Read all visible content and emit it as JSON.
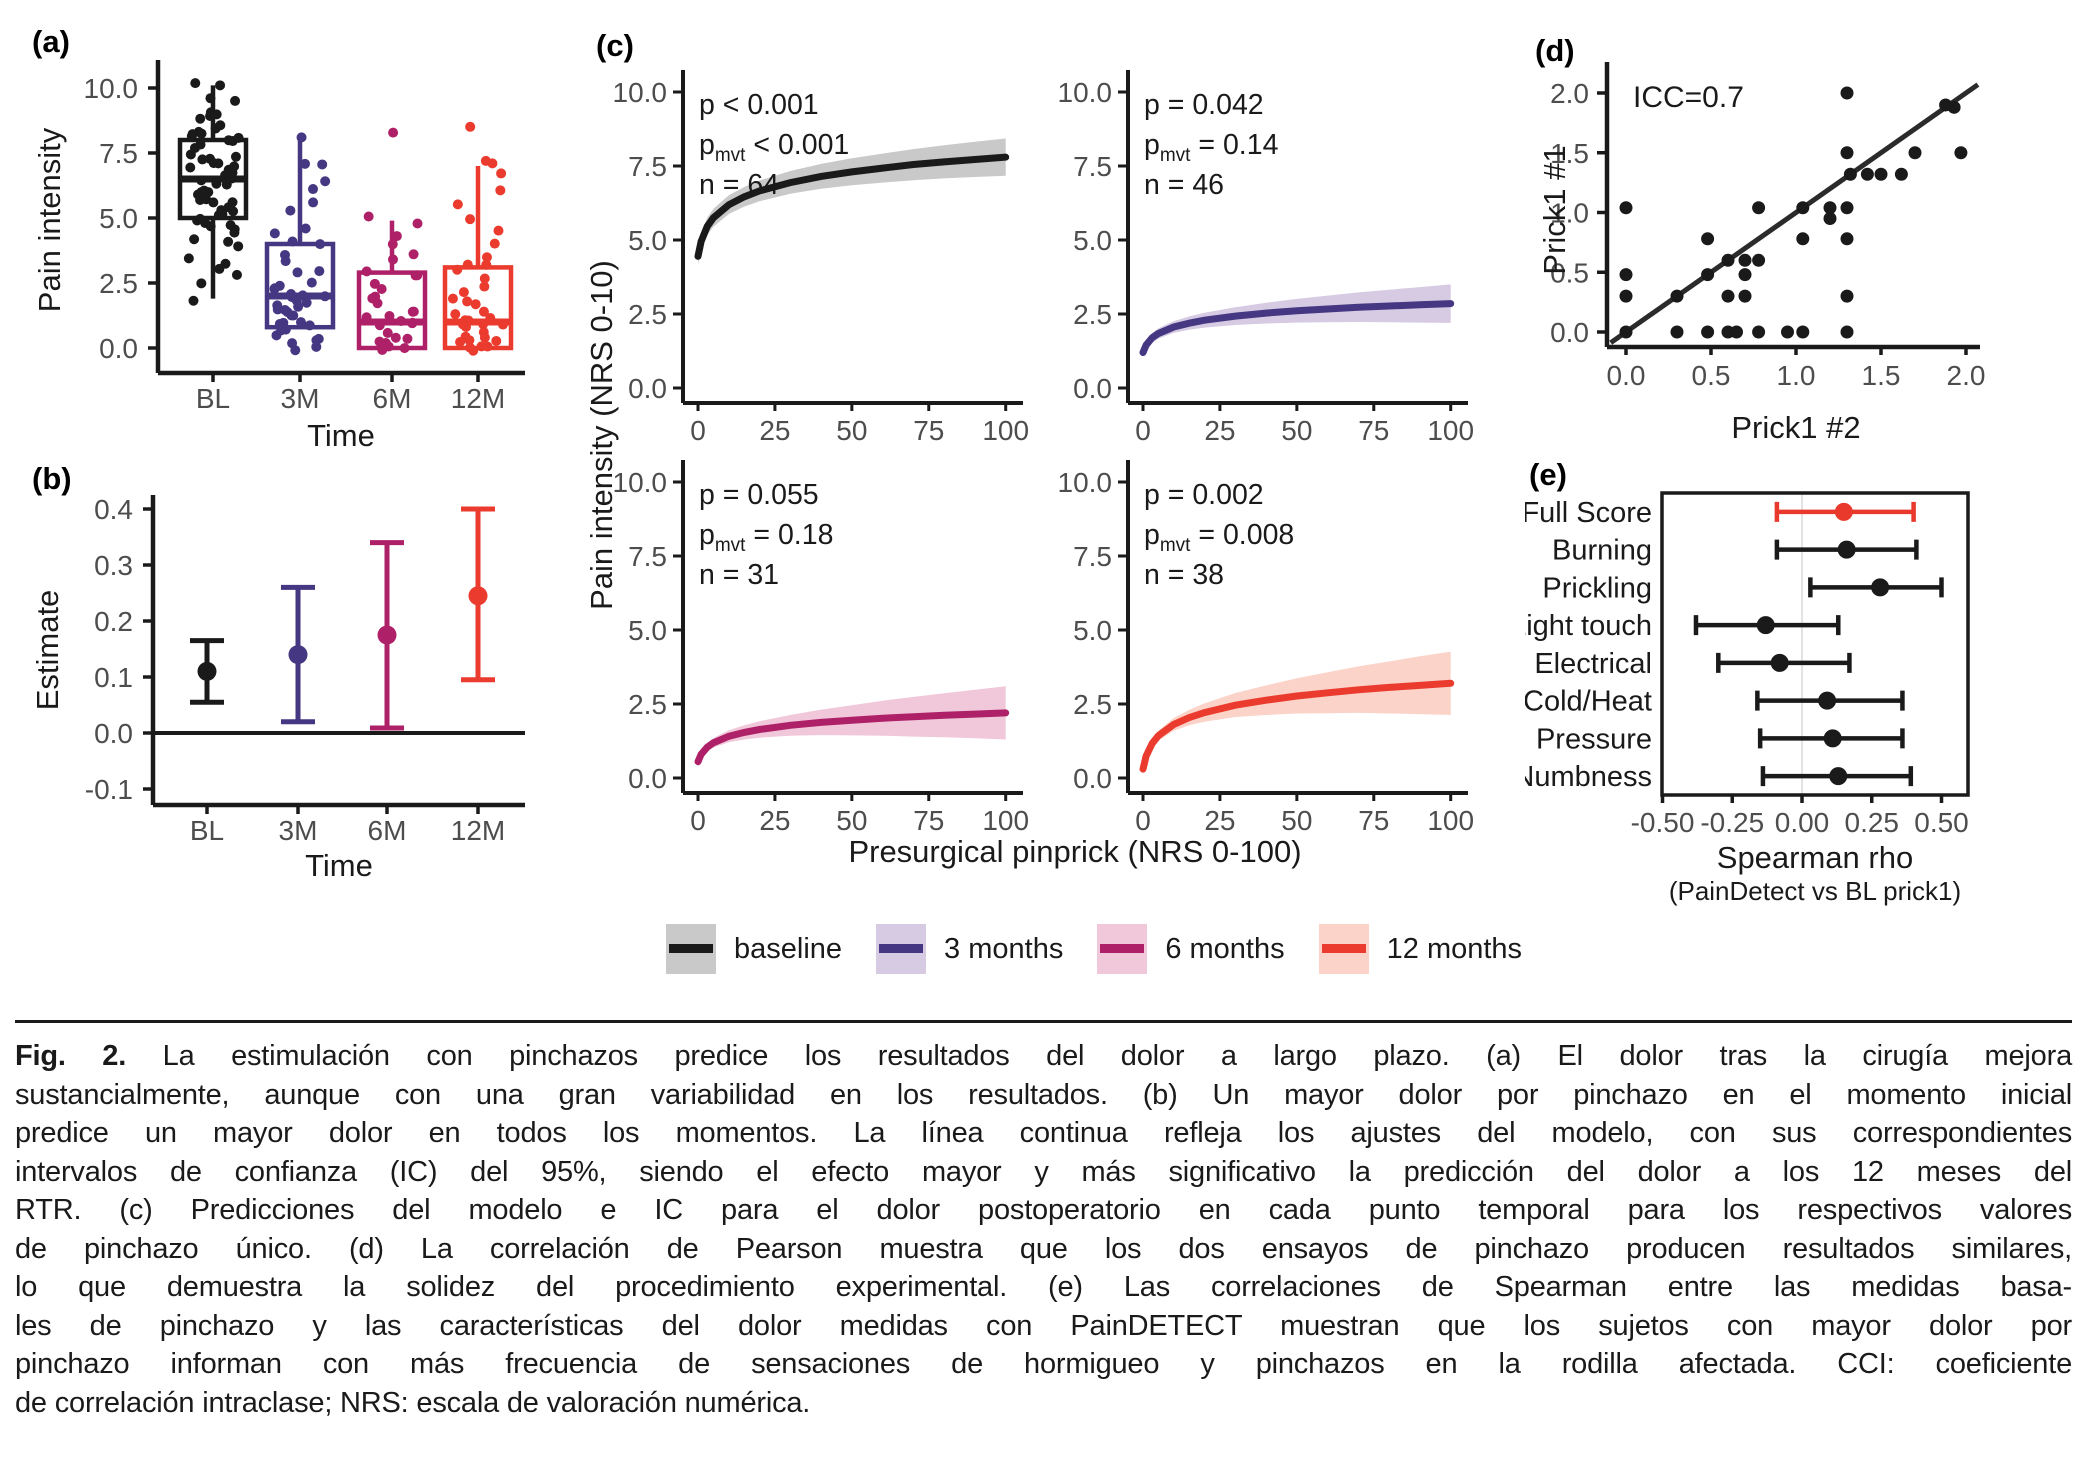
{
  "page": {
    "background": "#ffffff"
  },
  "panel_labels": {
    "a": "(a)",
    "b": "(b)",
    "c": "(c)",
    "d": "(d)",
    "e": "(e)"
  },
  "legend": {
    "items": [
      {
        "label": "baseline",
        "color": "#1a1a1a",
        "band": "#c9c9c9"
      },
      {
        "label": "3 months",
        "color": "#453781",
        "band": "#d6cbe3"
      },
      {
        "label": "6 months",
        "color": "#ae2168",
        "band": "#f1c7da"
      },
      {
        "label": "12 months",
        "color": "#ea3b2e",
        "band": "#fbd3c8"
      }
    ]
  },
  "caption": {
    "fig_label": "Fig. 2.",
    "lines": [
      "La estimulación con pinchazos predice los resultados del dolor a largo plazo. (a) El dolor tras la cirugía mejora",
      "sustancialmente, aunque con una gran variabilidad en los resultados. (b) Un mayor dolor por pinchazo en el momento inicial",
      "predice un mayor dolor en todos los momentos. La línea continua refleja los ajustes del modelo, con sus correspondientes",
      "intervalos de confianza (IC) del 95%, siendo el efecto mayor y más significativo la predicción del dolor a los 12 meses del",
      "RTR. (c) Predicciones del modelo e IC para el dolor postoperatorio en cada punto temporal para los respectivos valores",
      "de pinchazo único. (d) La correlación de Pearson muestra que los dos ensayos de pinchazo producen resultados similares,",
      "lo que demuestra la solidez del procedimiento experimental. (e) Las correlaciones de Spearman entre las medidas basa-",
      "les de pinchazo y las características del dolor medidas con PainDETECT muestran que los sujetos con mayor dolor por",
      "pinchazo informan con más frecuencia de sensaciones de hormigueo y pinchazos en la rodilla afectada. CCI: coeficiente",
      "de correlación intraclase; NRS: escala de valoración numérica."
    ]
  },
  "chart_data": [
    {
      "panel": "a",
      "type": "box",
      "xlabel": "Time",
      "ylabel": "Pain intensity",
      "ylim": [
        -0.6,
        10.6
      ],
      "yticks": [
        0,
        2.5,
        5,
        7.5,
        10
      ],
      "ytick_labels": [
        "0.0",
        "2.5",
        "5.0",
        "7.5",
        "10.0"
      ],
      "categories": [
        "BL",
        "3M",
        "6M",
        "12M"
      ],
      "colors": [
        "#1a1a1a",
        "#453781",
        "#ae2168",
        "#ea3b2e"
      ],
      "boxes": [
        {
          "whislo": 1.9,
          "q1": 5.0,
          "med": 6.5,
          "q3": 8.0,
          "whishi": 10.1
        },
        {
          "whislo": 0.8,
          "q1": 0.8,
          "med": 2.0,
          "q3": 4.0,
          "whishi": 8.0
        },
        {
          "whislo": 0.0,
          "q1": 0.0,
          "med": 1.0,
          "q3": 2.9,
          "whishi": 4.9
        },
        {
          "whislo": 0.0,
          "q1": 0.0,
          "med": 1.0,
          "q3": 3.1,
          "whishi": 7.0
        }
      ],
      "points": [
        [
          10.1,
          10.0,
          9.6,
          9.4,
          9.1,
          9.0,
          8.9,
          8.8,
          8.6,
          8.5,
          8.4,
          8.3,
          8.2,
          8.1,
          8.0,
          8.0,
          7.9,
          7.8,
          7.6,
          7.5,
          7.4,
          7.3,
          7.2,
          7.1,
          7.0,
          7.0,
          6.9,
          6.8,
          6.7,
          6.6,
          6.5,
          6.5,
          6.4,
          6.3,
          6.2,
          6.1,
          6.0,
          6.0,
          5.9,
          5.8,
          5.7,
          5.6,
          5.5,
          5.4,
          5.3,
          5.2,
          5.1,
          5.0,
          5.0,
          4.9,
          4.8,
          4.7,
          4.6,
          4.5,
          4.4,
          4.2,
          4.0,
          3.8,
          3.5,
          3.2,
          3.0,
          2.9,
          2.5,
          1.9
        ],
        [
          8.0,
          7.0,
          7.0,
          6.5,
          6.0,
          5.5,
          5.2,
          4.7,
          4.3,
          4.0,
          3.9,
          3.6,
          3.3,
          3.0,
          2.8,
          2.6,
          2.4,
          2.3,
          2.2,
          2.1,
          2.1,
          2.0,
          2.0,
          2.0,
          1.9,
          1.9,
          1.8,
          1.7,
          1.6,
          1.5,
          1.4,
          1.3,
          1.2,
          1.2,
          1.1,
          1.0,
          0.9,
          0.8,
          0.7,
          0.6,
          0.5,
          0.4,
          0.3,
          0.2,
          0.1,
          0.0
        ],
        [
          8.2,
          5.0,
          4.9,
          4.4,
          4.0,
          3.5,
          3.3,
          3.0,
          2.9,
          2.7,
          2.4,
          2.2,
          2.0,
          1.9,
          1.7,
          1.5,
          1.4,
          1.2,
          1.1,
          1.0,
          1.0,
          0.9,
          0.8,
          0.6,
          0.5,
          0.4,
          0.3,
          0.2,
          0.1,
          0.0,
          0.0
        ],
        [
          8.6,
          7.3,
          7.0,
          6.6,
          6.0,
          5.6,
          5.0,
          4.6,
          4.1,
          3.6,
          3.3,
          3.1,
          2.9,
          2.6,
          2.3,
          2.1,
          2.0,
          1.8,
          1.6,
          1.4,
          1.3,
          1.2,
          1.1,
          1.0,
          1.0,
          0.9,
          0.8,
          0.7,
          0.6,
          0.5,
          0.4,
          0.3,
          0.2,
          0.2,
          0.1,
          0.1,
          0.0,
          0.0
        ]
      ]
    },
    {
      "panel": "b",
      "type": "pointrange",
      "xlabel": "Time",
      "ylabel": "Estimate",
      "ylim": [
        -0.13,
        0.42
      ],
      "yticks": [
        -0.1,
        0,
        0.1,
        0.2,
        0.3,
        0.4
      ],
      "ytick_labels": [
        "-0.1",
        "0.0",
        "0.1",
        "0.2",
        "0.3",
        "0.4"
      ],
      "hline": 0,
      "categories": [
        "BL",
        "3M",
        "6M",
        "12M"
      ],
      "colors": [
        "#1a1a1a",
        "#453781",
        "#ae2168",
        "#ea3b2e"
      ],
      "series": [
        {
          "est": 0.11,
          "lo": 0.055,
          "hi": 0.165
        },
        {
          "est": 0.14,
          "lo": 0.02,
          "hi": 0.26
        },
        {
          "est": 0.175,
          "lo": 0.009,
          "hi": 0.34
        },
        {
          "est": 0.245,
          "lo": 0.095,
          "hi": 0.4
        }
      ]
    },
    {
      "panel": "c",
      "type": "line",
      "xlabel": "Presurgical pinprick (NRS 0-100)",
      "ylabel": "Pain intensity (NRS 0-10)",
      "xticks": [
        0,
        25,
        50,
        75,
        100
      ],
      "xtick_labels": [
        "0",
        "25",
        "50",
        "75",
        "100"
      ],
      "yticks": [
        0,
        2.5,
        5,
        7.5,
        10
      ],
      "ytick_labels": [
        "0.0",
        "2.5",
        "5.0",
        "7.5",
        "10.0"
      ],
      "xlim": [
        0,
        100
      ],
      "ylim": [
        0,
        10
      ],
      "pmvt_base": "p",
      "pmvt_sub": "mvt",
      "subplots": [
        {
          "name": "baseline",
          "color": "#1a1a1a",
          "band": "#c9c9c9",
          "stats": {
            "p": "p < 0.001",
            "pmvt": "< 0.001",
            "n": "n = 64"
          },
          "points": [
            [
              0,
              4.45,
              4.17,
              4.73
            ],
            [
              1,
              4.95,
              4.67,
              5.23
            ],
            [
              3,
              5.46,
              5.17,
              5.75
            ],
            [
              5,
              5.75,
              5.45,
              6.05
            ],
            [
              10,
              6.19,
              5.88,
              6.51
            ],
            [
              15,
              6.46,
              6.13,
              6.79
            ],
            [
              20,
              6.66,
              6.31,
              7.01
            ],
            [
              30,
              6.94,
              6.56,
              7.33
            ],
            [
              40,
              7.15,
              6.73,
              7.57
            ],
            [
              50,
              7.3,
              6.85,
              7.76
            ],
            [
              60,
              7.43,
              6.94,
              7.92
            ],
            [
              70,
              7.55,
              7.02,
              8.07
            ],
            [
              80,
              7.64,
              7.08,
              8.2
            ],
            [
              90,
              7.72,
              7.13,
              8.32
            ],
            [
              100,
              7.8,
              7.17,
              8.43
            ]
          ]
        },
        {
          "name": "3 months",
          "color": "#453781",
          "band": "#d6cbe3",
          "stats": {
            "p": "p = 0.042",
            "pmvt": "= 0.14",
            "n": "n = 46"
          },
          "points": [
            [
              0,
              1.2,
              1.05,
              1.35
            ],
            [
              1,
              1.45,
              1.29,
              1.6
            ],
            [
              3,
              1.7,
              1.53,
              1.86
            ],
            [
              5,
              1.84,
              1.67,
              2.02
            ],
            [
              10,
              2.06,
              1.86,
              2.26
            ],
            [
              15,
              2.19,
              1.97,
              2.42
            ],
            [
              20,
              2.29,
              2.04,
              2.54
            ],
            [
              30,
              2.43,
              2.13,
              2.73
            ],
            [
              40,
              2.53,
              2.18,
              2.88
            ],
            [
              50,
              2.61,
              2.21,
              3.01
            ],
            [
              60,
              2.67,
              2.22,
              3.12
            ],
            [
              70,
              2.73,
              2.23,
              3.23
            ],
            [
              80,
              2.77,
              2.22,
              3.32
            ],
            [
              90,
              2.81,
              2.21,
              3.41
            ],
            [
              100,
              2.85,
              2.2,
              3.5
            ]
          ]
        },
        {
          "name": "6 months",
          "color": "#ae2168",
          "band": "#f1c7da",
          "stats": {
            "p": "p = 0.055",
            "pmvt": "= 0.18",
            "n": "n = 31"
          },
          "points": [
            [
              0,
              0.55,
              0.43,
              0.67
            ],
            [
              1,
              0.8,
              0.67,
              0.93
            ],
            [
              3,
              1.04,
              0.9,
              1.18
            ],
            [
              5,
              1.19,
              1.03,
              1.35
            ],
            [
              10,
              1.41,
              1.21,
              1.61
            ],
            [
              15,
              1.54,
              1.3,
              1.78
            ],
            [
              20,
              1.64,
              1.36,
              1.92
            ],
            [
              30,
              1.78,
              1.43,
              2.13
            ],
            [
              40,
              1.88,
              1.45,
              2.31
            ],
            [
              50,
              1.95,
              1.44,
              2.46
            ],
            [
              60,
              2.02,
              1.43,
              2.61
            ],
            [
              70,
              2.07,
              1.4,
              2.74
            ],
            [
              80,
              2.12,
              1.38,
              2.86
            ],
            [
              90,
              2.16,
              1.34,
              2.98
            ],
            [
              100,
              2.2,
              1.3,
              3.1
            ]
          ]
        },
        {
          "name": "12 months",
          "color": "#ea3b2e",
          "band": "#fbd3c8",
          "stats": {
            "p": "p = 0.002",
            "pmvt": "= 0.008",
            "n": "n = 38"
          },
          "points": [
            [
              0,
              0.3,
              0.18,
              0.42
            ],
            [
              1,
              0.74,
              0.61,
              0.87
            ],
            [
              3,
              1.17,
              1.02,
              1.32
            ],
            [
              5,
              1.43,
              1.26,
              1.6
            ],
            [
              10,
              1.81,
              1.6,
              2.03
            ],
            [
              15,
              2.04,
              1.78,
              2.3
            ],
            [
              20,
              2.21,
              1.9,
              2.52
            ],
            [
              30,
              2.46,
              2.06,
              2.87
            ],
            [
              40,
              2.63,
              2.13,
              3.13
            ],
            [
              50,
              2.77,
              2.18,
              3.37
            ],
            [
              60,
              2.88,
              2.19,
              3.57
            ],
            [
              70,
              2.98,
              2.2,
              3.77
            ],
            [
              80,
              3.06,
              2.18,
              3.94
            ],
            [
              90,
              3.13,
              2.16,
              4.11
            ],
            [
              100,
              3.2,
              2.13,
              4.27
            ]
          ]
        }
      ]
    },
    {
      "panel": "d",
      "type": "scatter",
      "xlabel": "Prick1 #2",
      "ylabel": "Prick1 #1",
      "annotation": "ICC=0.7",
      "xticks": [
        0,
        0.5,
        1,
        1.5,
        2
      ],
      "xtick_labels": [
        "0.0",
        "0.5",
        "1.0",
        "1.5",
        "2.0"
      ],
      "yticks": [
        0,
        0.5,
        1,
        1.5,
        2
      ],
      "ytick_labels": [
        "0.0",
        "0.5",
        "1.0",
        "1.5",
        "2.0"
      ],
      "line": {
        "x1": -0.09,
        "y1": -0.09,
        "x2": 2.07,
        "y2": 2.07
      },
      "points": [
        [
          0,
          0
        ],
        [
          0,
          0.3
        ],
        [
          0,
          0.48
        ],
        [
          0,
          1.04
        ],
        [
          0.3,
          0
        ],
        [
          0.3,
          0.3
        ],
        [
          0.48,
          0
        ],
        [
          0.48,
          0.48
        ],
        [
          0.48,
          0.78
        ],
        [
          0.6,
          0
        ],
        [
          0.6,
          0.3
        ],
        [
          0.6,
          0.6
        ],
        [
          0.65,
          0
        ],
        [
          0.7,
          0.3
        ],
        [
          0.7,
          0.48
        ],
        [
          0.7,
          0.6
        ],
        [
          0.78,
          0
        ],
        [
          0.78,
          0.6
        ],
        [
          0.78,
          1.04
        ],
        [
          0.95,
          0
        ],
        [
          1.04,
          0
        ],
        [
          1.04,
          0.78
        ],
        [
          1.04,
          1.04
        ],
        [
          1.2,
          0.95
        ],
        [
          1.2,
          1.04
        ],
        [
          1.3,
          0
        ],
        [
          1.3,
          0.3
        ],
        [
          1.3,
          0.78
        ],
        [
          1.3,
          1.04
        ],
        [
          1.32,
          1.32
        ],
        [
          1.3,
          1.5
        ],
        [
          1.3,
          2.0
        ],
        [
          1.42,
          1.32
        ],
        [
          1.5,
          1.32
        ],
        [
          1.62,
          1.32
        ],
        [
          1.7,
          1.5
        ],
        [
          1.88,
          1.9
        ],
        [
          1.93,
          1.88
        ],
        [
          1.97,
          1.5
        ]
      ]
    },
    {
      "panel": "e",
      "type": "forest",
      "xlabel": "Spearman rho",
      "xlabel2": "(PainDetect vs BL prick1)",
      "xticks": [
        -0.5,
        -0.25,
        0,
        0.25,
        0.5
      ],
      "xtick_labels": [
        "-0.50",
        "-0.25",
        "0.00",
        "0.25",
        "0.50"
      ],
      "rows": [
        {
          "label": "Full Score",
          "est": 0.15,
          "lo": -0.09,
          "hi": 0.4,
          "color": "#e8392c"
        },
        {
          "label": "Burning",
          "est": 0.16,
          "lo": -0.09,
          "hi": 0.41,
          "color": "#1a1a1a"
        },
        {
          "label": "Prickling",
          "est": 0.28,
          "lo": 0.03,
          "hi": 0.5,
          "color": "#1a1a1a"
        },
        {
          "label": "Light touch",
          "est": -0.13,
          "lo": -0.38,
          "hi": 0.13,
          "color": "#1a1a1a"
        },
        {
          "label": "Electrical",
          "est": -0.08,
          "lo": -0.3,
          "hi": 0.17,
          "color": "#1a1a1a"
        },
        {
          "label": "Cold/Heat",
          "est": 0.09,
          "lo": -0.16,
          "hi": 0.36,
          "color": "#1a1a1a"
        },
        {
          "label": "Pressure",
          "est": 0.11,
          "lo": -0.15,
          "hi": 0.36,
          "color": "#1a1a1a"
        },
        {
          "label": "Numbness",
          "est": 0.13,
          "lo": -0.14,
          "hi": 0.39,
          "color": "#1a1a1a"
        }
      ]
    }
  ]
}
